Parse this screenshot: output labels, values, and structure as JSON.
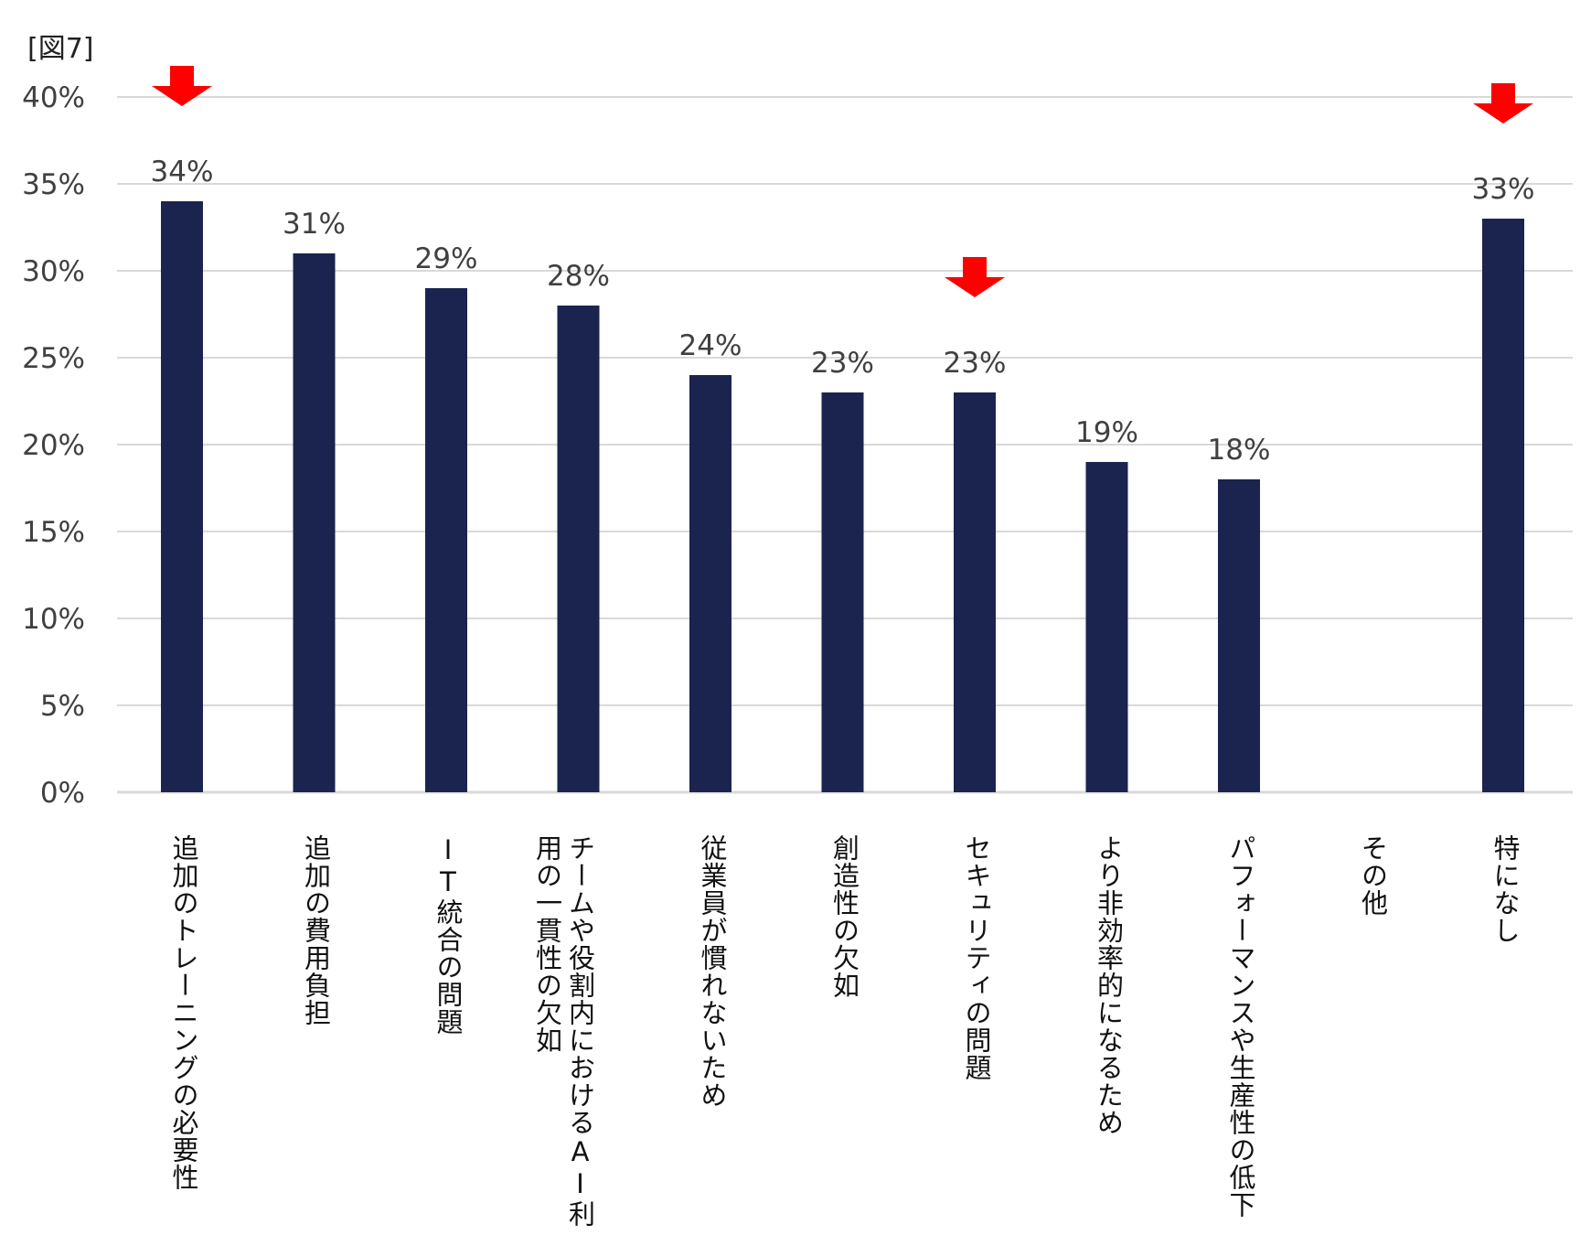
{
  "figure_label": "[図7]",
  "colors": {
    "bar": "#1a244f",
    "grid": "#d9d9d9",
    "arrow": "#ff0000",
    "text": "#404040"
  },
  "chart_data": {
    "type": "bar",
    "title": "",
    "xlabel": "",
    "ylabel": "",
    "ylim": [
      0,
      40
    ],
    "ytick_step": 5,
    "ytick_labels": [
      "0%",
      "5%",
      "10%",
      "15%",
      "20%",
      "25%",
      "30%",
      "35%",
      "40%"
    ],
    "grid": true,
    "categories": [
      "追加のトレーニングの必要性",
      "追加の費用負担",
      "IT統合の問題",
      "チームや役割内におけるAI利用の一貫性の欠如",
      "従業員が慣れないため",
      "創造性の欠如",
      "セキュリティの問題",
      "より非効率的になるため",
      "パフォーマンスや生産性の低下",
      "その他",
      "特になし"
    ],
    "values": [
      34,
      31,
      29,
      28,
      24,
      23,
      23,
      19,
      18,
      null,
      33
    ],
    "data_labels": [
      "34%",
      "31%",
      "29%",
      "28%",
      "24%",
      "23%",
      "23%",
      "19%",
      "18%",
      "",
      "33%"
    ],
    "highlighted_categories": [
      "追加のトレーニングの必要性",
      "セキュリティの問題",
      "特になし"
    ]
  }
}
